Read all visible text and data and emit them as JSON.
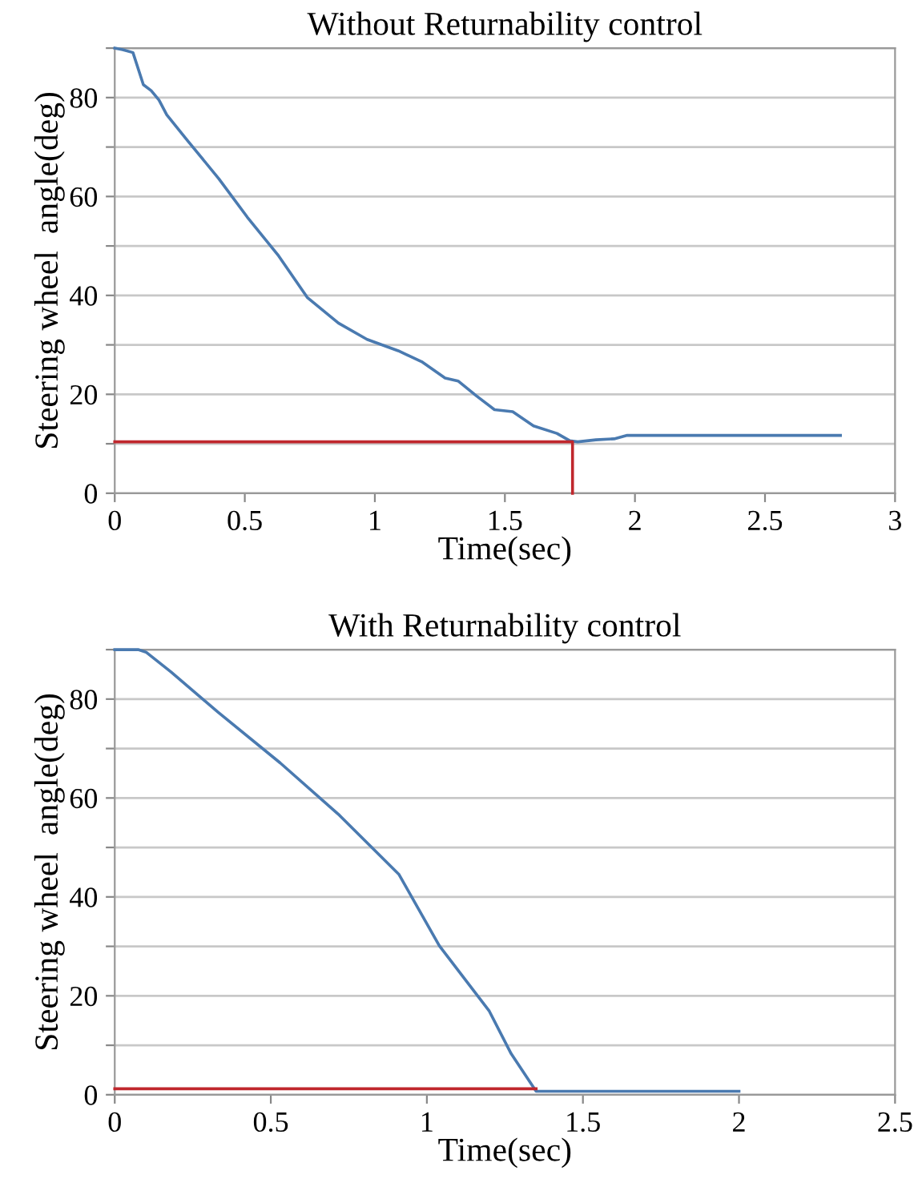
{
  "chart_data": [
    {
      "type": "line",
      "title": "Without Returnability control",
      "xlabel": "Time(sec)",
      "ylabel": "Steering wheel  angle(deg)",
      "xlim": [
        0,
        3
      ],
      "xticks": [
        0,
        0.5,
        1,
        1.5,
        2,
        2.5,
        3
      ],
      "ylim": [
        0,
        90
      ],
      "yticks": [
        0,
        {
          "value": 10,
          "label": null
        },
        20,
        {
          "value": 30,
          "label": null
        },
        40,
        {
          "value": 50,
          "label": null
        },
        60,
        {
          "value": 70,
          "label": null
        },
        80,
        {
          "value": 90,
          "label": null
        }
      ],
      "grid": "y",
      "line_style": "solid",
      "marker": "none",
      "series": [
        {
          "color": "#4a7ab0",
          "x": [
            0,
            0.03,
            0.07,
            0.11,
            0.14,
            0.17,
            0.2,
            0.28,
            0.4,
            0.51,
            0.63,
            0.74,
            0.86,
            0.97,
            1.09,
            1.18,
            1.27,
            1.32,
            1.39,
            1.46,
            1.53,
            1.61,
            1.7,
            1.75,
            1.78,
            1.85,
            1.92,
            1.97,
            2.79
          ],
          "values": [
            90,
            89.7,
            89.1,
            82.6,
            81.4,
            79.5,
            76.5,
            71.3,
            63.6,
            55.8,
            48.0,
            39.6,
            34.4,
            31.1,
            28.8,
            26.6,
            23.3,
            22.7,
            19.7,
            16.9,
            16.5,
            13.6,
            12.1,
            10.6,
            10.4,
            10.8,
            11.0,
            11.7,
            11.7
          ]
        },
        {
          "color": "#c0272d",
          "x": [
            0,
            1.76,
            1.76
          ],
          "values": [
            10.4,
            10.4,
            0
          ]
        }
      ]
    },
    {
      "type": "line",
      "title": "With Returnability control",
      "xlabel": "Time(sec)",
      "ylabel": "Steering wheel  angle(deg)",
      "xlim": [
        0,
        2.5
      ],
      "xticks": [
        0,
        0.5,
        1,
        1.5,
        2,
        2.5
      ],
      "ylim": [
        0,
        90
      ],
      "yticks": [
        0,
        {
          "value": 10,
          "label": null
        },
        20,
        {
          "value": 30,
          "label": null
        },
        40,
        {
          "value": 50,
          "label": null
        },
        60,
        {
          "value": 70,
          "label": null
        },
        80,
        {
          "value": 90,
          "label": null
        }
      ],
      "grid": "y",
      "line_style": "solid",
      "marker": "none",
      "series": [
        {
          "color": "#4a7ab0",
          "x": [
            0,
            0.075,
            0.1,
            0.18,
            0.33,
            0.53,
            0.72,
            0.91,
            1.04,
            1.2,
            1.27,
            1.35,
            2.0
          ],
          "values": [
            90,
            90,
            89.5,
            85.5,
            77.4,
            67.1,
            56.5,
            44.6,
            30.1,
            16.9,
            8.3,
            0.7,
            0.7
          ]
        },
        {
          "color": "#c0272d",
          "x": [
            0,
            1.35
          ],
          "values": [
            1.2,
            1.2
          ]
        }
      ]
    }
  ]
}
